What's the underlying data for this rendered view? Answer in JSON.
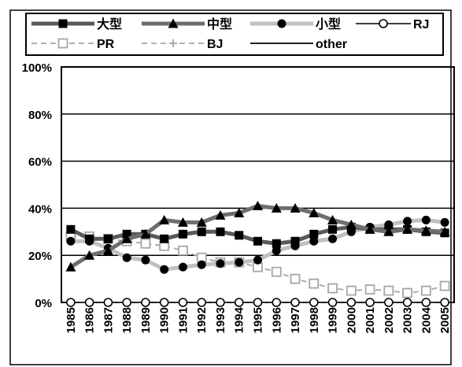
{
  "chart_data": {
    "type": "line",
    "title": "",
    "xlabel": "",
    "ylabel": "",
    "ylim": [
      0,
      1
    ],
    "y_ticks": [
      "0%",
      "20%",
      "40%",
      "60%",
      "80%",
      "100%"
    ],
    "categories": [
      "1985",
      "1986",
      "1987",
      "1988",
      "1989",
      "1990",
      "1991",
      "1992",
      "1993",
      "1994",
      "1995",
      "1996",
      "1997",
      "1998",
      "1999",
      "2000",
      "2001",
      "2002",
      "2003",
      "2004",
      "2005"
    ],
    "legend_position": "top",
    "series": [
      {
        "name": "大型",
        "color": "#595959",
        "marker": "square",
        "values": [
          0.31,
          0.27,
          0.27,
          0.29,
          0.29,
          0.27,
          0.29,
          0.3,
          0.3,
          0.285,
          0.26,
          0.25,
          0.26,
          0.29,
          0.31,
          0.32,
          0.31,
          0.31,
          0.31,
          0.3,
          0.295
        ]
      },
      {
        "name": "中型",
        "color": "#6e6e6e",
        "marker": "triangle",
        "values": [
          0.15,
          0.2,
          0.22,
          0.27,
          0.29,
          0.35,
          0.34,
          0.34,
          0.37,
          0.38,
          0.41,
          0.4,
          0.4,
          0.38,
          0.35,
          0.33,
          0.31,
          0.3,
          0.31,
          0.305,
          0.3
        ]
      },
      {
        "name": "小型",
        "color": "#c0c0c0",
        "marker": "circle-filled",
        "values": [
          0.26,
          0.26,
          0.23,
          0.19,
          0.18,
          0.14,
          0.15,
          0.16,
          0.165,
          0.17,
          0.18,
          0.22,
          0.24,
          0.26,
          0.27,
          0.3,
          0.32,
          0.33,
          0.345,
          0.35,
          0.34
        ]
      },
      {
        "name": "RJ",
        "color": "#222222",
        "marker": "circle-open",
        "values": [
          0,
          0,
          0,
          0,
          0,
          0,
          0,
          0,
          0,
          0,
          0,
          0,
          0,
          0,
          0,
          0,
          0,
          0,
          0,
          0,
          0
        ]
      },
      {
        "name": "PR",
        "color": "#a6a6a6",
        "marker": "square-open",
        "values": [
          0.28,
          0.28,
          0.27,
          0.26,
          0.25,
          0.24,
          0.22,
          0.19,
          0.17,
          0.17,
          0.15,
          0.13,
          0.1,
          0.08,
          0.06,
          0.05,
          0.055,
          0.05,
          0.04,
          0.05,
          0.07
        ]
      },
      {
        "name": "BJ",
        "color": "#a6a6a6",
        "marker": "plus",
        "values": [
          0,
          0,
          0,
          0,
          0,
          0,
          0,
          0,
          0,
          0,
          0,
          0,
          0,
          0,
          0,
          0,
          0,
          0,
          0,
          0,
          0
        ]
      },
      {
        "name": "other",
        "color": "#000000",
        "marker": "none",
        "values": [
          0,
          0,
          0,
          0,
          0,
          0,
          0,
          0,
          0,
          0,
          0,
          0,
          0,
          0,
          0,
          0,
          0,
          0,
          0,
          0,
          0
        ]
      }
    ]
  }
}
